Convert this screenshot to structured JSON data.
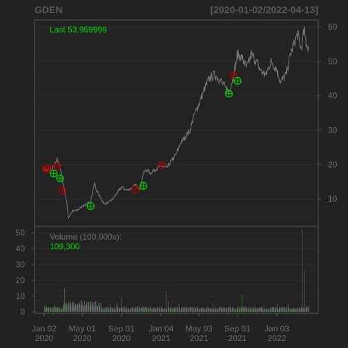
{
  "header": {
    "symbol": "GDEN",
    "date_range": "[2020-01-02/2022-04-13]"
  },
  "price_panel": {
    "last_label": "Last 53.959999"
  },
  "volume_panel": {
    "label": "Volume (100,000s):",
    "value": "109,300"
  },
  "colors": {
    "background": "#222222",
    "frame": "#5a5a5a",
    "price_line": "#7a7a7a",
    "volume_bar": "#6a6a6a",
    "volume_up": "#3c9a3c",
    "buy_marker": "#00cc00",
    "sell_marker": "#aa0000"
  },
  "chart_data": [
    {
      "type": "line",
      "panel": "price",
      "series": [
        {
          "values": [
            [
              "2020-01-02",
              18.8
            ],
            [
              "2020-01-15",
              18.2
            ],
            [
              "2020-02-01",
              19.3
            ],
            [
              "2020-02-12",
              21.4
            ],
            [
              "2020-02-21",
              19.5
            ],
            [
              "2020-02-28",
              15.5
            ],
            [
              "2020-03-06",
              12.5
            ],
            [
              "2020-03-13",
              9.0
            ],
            [
              "2020-03-18",
              4.5
            ],
            [
              "2020-03-24",
              5.5
            ],
            [
              "2020-04-01",
              6.5
            ],
            [
              "2020-04-10",
              6.5
            ],
            [
              "2020-04-20",
              7.0
            ],
            [
              "2020-05-01",
              8.0
            ],
            [
              "2020-05-15",
              8.5
            ],
            [
              "2020-05-27",
              9.5
            ],
            [
              "2020-06-08",
              14.5
            ],
            [
              "2020-06-15",
              12.5
            ],
            [
              "2020-06-29",
              10.0
            ],
            [
              "2020-07-10",
              8.5
            ],
            [
              "2020-07-24",
              9.0
            ],
            [
              "2020-08-05",
              10.0
            ],
            [
              "2020-08-20",
              12.0
            ],
            [
              "2020-09-03",
              13.5
            ],
            [
              "2020-09-15",
              12.5
            ],
            [
              "2020-09-30",
              13.0
            ],
            [
              "2020-10-15",
              14.0
            ],
            [
              "2020-10-30",
              13.0
            ],
            [
              "2020-11-09",
              17.5
            ],
            [
              "2020-11-20",
              18.5
            ],
            [
              "2020-12-01",
              17.5
            ],
            [
              "2020-12-15",
              18.5
            ],
            [
              "2021-01-05",
              19.5
            ],
            [
              "2021-01-20",
              19.0
            ],
            [
              "2021-02-05",
              21.0
            ],
            [
              "2021-02-20",
              23.0
            ],
            [
              "2021-03-05",
              26.0
            ],
            [
              "2021-03-20",
              28.0
            ],
            [
              "2021-04-05",
              30.0
            ],
            [
              "2021-04-20",
              35.0
            ],
            [
              "2021-05-05",
              38.0
            ],
            [
              "2021-05-20",
              42.0
            ],
            [
              "2021-06-05",
              45.0
            ],
            [
              "2021-06-20",
              46.0
            ],
            [
              "2021-07-05",
              45.0
            ],
            [
              "2021-07-20",
              43.0
            ],
            [
              "2021-08-05",
              41.0
            ],
            [
              "2021-08-20",
              46.0
            ],
            [
              "2021-09-01",
              52.0
            ],
            [
              "2021-09-15",
              51.0
            ],
            [
              "2021-09-30",
              48.0
            ],
            [
              "2021-10-15",
              52.0
            ],
            [
              "2021-10-30",
              50.0
            ],
            [
              "2021-11-15",
              47.0
            ],
            [
              "2021-11-30",
              46.0
            ],
            [
              "2021-12-15",
              50.0
            ],
            [
              "2022-01-01",
              48.0
            ],
            [
              "2022-01-15",
              44.0
            ],
            [
              "2022-02-01",
              46.0
            ],
            [
              "2022-02-15",
              52.0
            ],
            [
              "2022-03-01",
              56.0
            ],
            [
              "2022-03-10",
              58.0
            ],
            [
              "2022-03-20",
              53.0
            ],
            [
              "2022-03-30",
              59.0
            ],
            [
              "2022-04-06",
              55.0
            ],
            [
              "2022-04-13",
              53.96
            ]
          ]
        }
      ],
      "markers": {
        "buy": [
          [
            "2020-02-01",
            17.4
          ],
          [
            "2020-02-21",
            16.0
          ],
          [
            "2020-05-27",
            7.9
          ],
          [
            "2020-11-09",
            13.8
          ],
          [
            "2021-08-05",
            40.6
          ],
          [
            "2021-09-01",
            44.3
          ]
        ],
        "sell": [
          [
            "2020-01-08",
            18.8
          ],
          [
            "2020-01-15",
            18.6
          ],
          [
            "2020-02-12",
            19.4
          ],
          [
            "2020-02-28",
            12.4
          ],
          [
            "2020-10-15",
            12.8
          ],
          [
            "2021-01-05",
            19.8
          ],
          [
            "2021-08-20",
            45.9
          ]
        ]
      },
      "y_ticks": [
        10,
        20,
        30,
        40,
        50,
        60
      ],
      "ylim": [
        2,
        62
      ],
      "grid": true
    },
    {
      "type": "bar",
      "panel": "volume",
      "y_ticks": [
        0,
        10,
        20,
        30,
        40,
        50
      ],
      "ylim": [
        -1,
        54
      ],
      "spikes": [
        [
          "2020-03-06",
          15
        ],
        [
          "2020-09-01",
          9
        ],
        [
          "2021-01-20",
          13
        ],
        [
          "2021-09-15",
          11
        ],
        [
          "2022-03-23",
          52
        ],
        [
          "2022-03-30",
          26
        ]
      ]
    }
  ],
  "x_axis": {
    "start": "2020-01-02",
    "end": "2022-04-13",
    "ticks": [
      {
        "date": "2020-01-02",
        "line1": "Jan 02",
        "line2": "2020"
      },
      {
        "date": "2020-05-01",
        "line1": "May 01",
        "line2": "2020"
      },
      {
        "date": "2020-09-01",
        "line1": "Sep 01",
        "line2": "2020"
      },
      {
        "date": "2021-01-04",
        "line1": "Jan 04",
        "line2": "2021"
      },
      {
        "date": "2021-05-03",
        "line1": "May 03",
        "line2": "2021"
      },
      {
        "date": "2021-09-01",
        "line1": "Sep 01",
        "line2": "2021"
      },
      {
        "date": "2022-01-03",
        "line1": "Jan 03",
        "line2": "2022"
      }
    ]
  }
}
